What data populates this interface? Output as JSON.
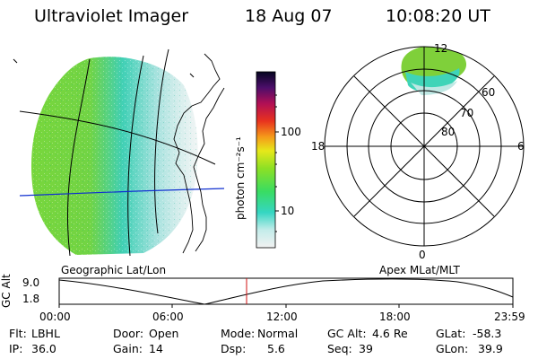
{
  "header": {
    "instrument": "Ultraviolet Imager",
    "date": "18 Aug 07",
    "time": "10:08:20 UT"
  },
  "colorbar": {
    "label": "photon cm⁻²s⁻¹",
    "ticks": [
      "100",
      "10"
    ]
  },
  "polar_plot": {
    "lat_labels": [
      "60",
      "70",
      "80"
    ],
    "mlt_labels": [
      "12",
      "18",
      "6",
      "0"
    ]
  },
  "timeline": {
    "left_title": "Geographic Lat/Lon",
    "right_title": "Apex MLat/MLT",
    "axis_label": "GC Alt",
    "y_ticks": [
      "9.0",
      "1.8"
    ],
    "x_ticks": [
      "00:00",
      "06:00",
      "12:00",
      "18:00",
      "23:59"
    ],
    "current_time_marker": "10:08:20"
  },
  "info": {
    "filter_label": "Flt:",
    "filter_value": "LBHL",
    "door_label": "Door:",
    "door_value": "Open",
    "mode_label": "Mode:",
    "mode_value": "Normal",
    "gcalt_label": "GC Alt:",
    "gcalt_value": "4.6 Re",
    "glat_label": "GLat:",
    "glat_value": "-58.3",
    "ip_label": "IP:",
    "ip_value": "36.0",
    "gain_label": "Gain:",
    "gain_value": "14",
    "dsp_label": "Dsp:",
    "dsp_value": "5.6",
    "seq_label": "Seq:",
    "seq_value": "39",
    "glon_label": "GLon:",
    "glon_value": "39.9"
  }
}
